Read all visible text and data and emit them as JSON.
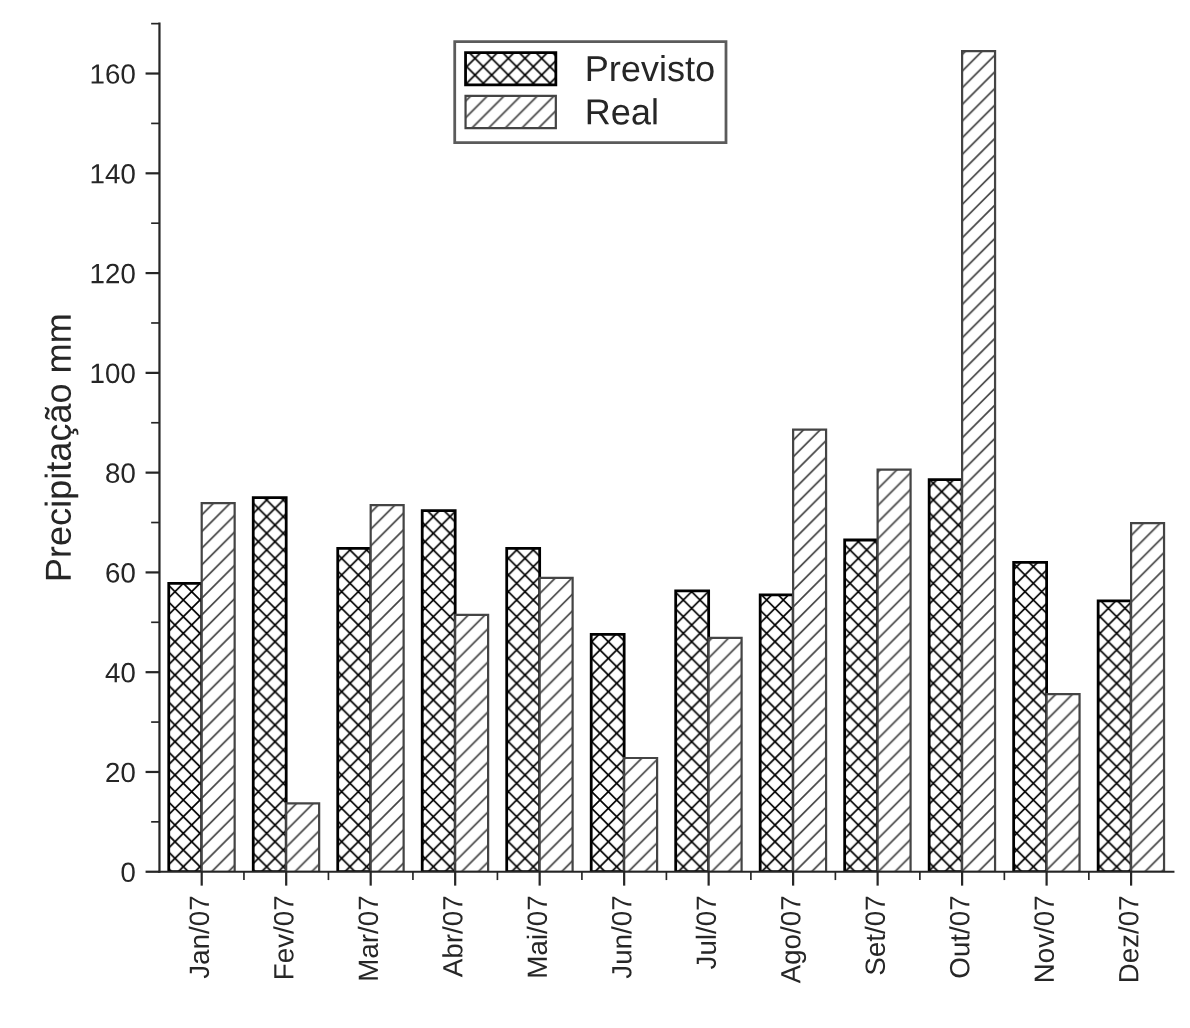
{
  "chart_data": {
    "type": "bar",
    "ylabel": "Precipitação mm",
    "categories": [
      "Jan/07",
      "Fev/07",
      "Mar/07",
      "Abr/07",
      "Mai/07",
      "Jun/07",
      "Jul/07",
      "Ago/07",
      "Set/07",
      "Out/07",
      "Nov/07",
      "Dez/07"
    ],
    "series": [
      {
        "name": "Previsto",
        "color": "#000000",
        "values": [
          57.8,
          75.0,
          64.8,
          72.4,
          64.8,
          47.6,
          56.3,
          55.5,
          66.5,
          78.6,
          62.0,
          54.3
        ]
      },
      {
        "name": "Real",
        "color": "#444444",
        "values": [
          73.9,
          13.7,
          73.5,
          51.5,
          58.9,
          22.8,
          46.9,
          88.6,
          80.6,
          164.5,
          35.6,
          69.9
        ]
      }
    ],
    "ylim": [
      0,
      170
    ],
    "yticks": [
      0,
      20,
      40,
      60,
      80,
      100,
      120,
      140,
      160
    ],
    "grid": false,
    "legend": "top"
  }
}
